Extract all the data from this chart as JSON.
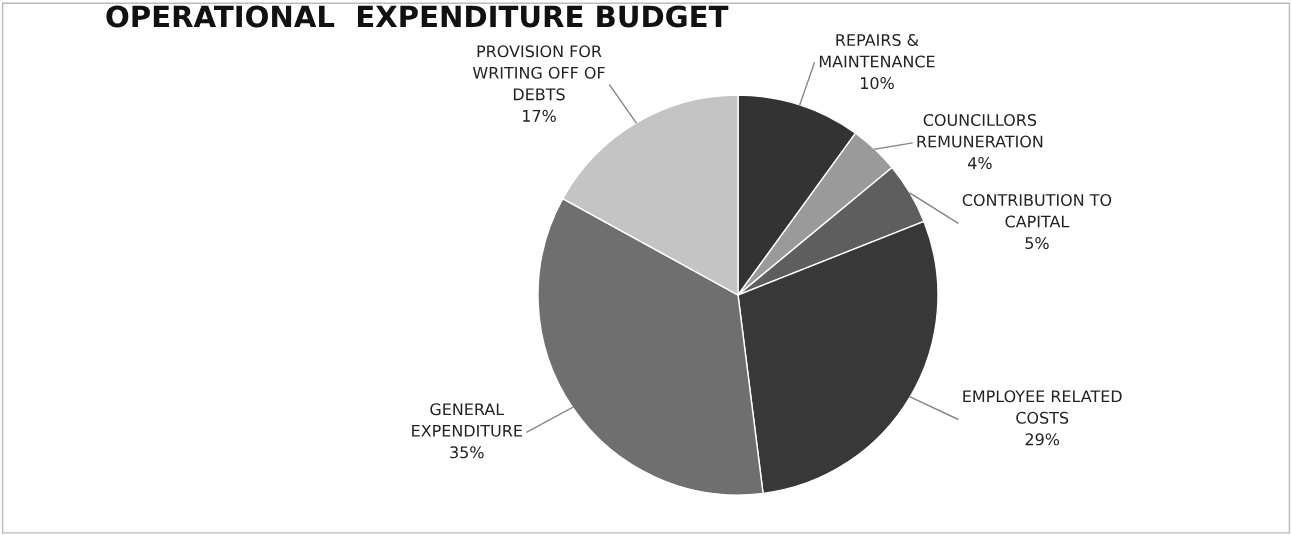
{
  "chart_data": {
    "type": "pie",
    "title": "OPERATIONAL  EXPENDITURE BUDGET",
    "categories": [
      "REPAIRS &\nMAINTENANCE",
      "COUNCILLORS\nREMUNERATION",
      "CONTRIBUTION TO\nCAPITAL",
      "EMPLOYEE RELATED\nCOSTS",
      "GENERAL\nEXPENDITURE",
      "PROVISION FOR\nWRITING OFF OF\nDEBTS"
    ],
    "values": [
      10,
      4,
      5,
      29,
      35,
      17
    ],
    "value_labels": [
      "10%",
      "4%",
      "5%",
      "29%",
      "35%",
      "17%"
    ],
    "colors": [
      "#333333",
      "#9a9a9a",
      "#5e5e5e",
      "#383838",
      "#6f6f6f",
      "#c4c4c4"
    ]
  }
}
